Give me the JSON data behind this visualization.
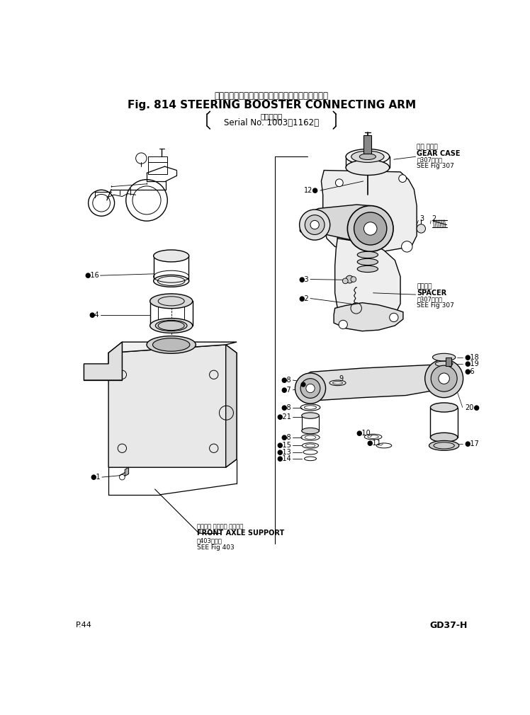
{
  "title_jp": "ステアリング　ブースタ　コネクティング　アーム",
  "title_en": "Fig. 814 STEERING BOOSTER CONNECTING ARM",
  "serial_jp": "（適用号機",
  "serial_en": "Serial No. 1003～1162）",
  "page_left": "P.44",
  "page_right": "GD37-H",
  "background": "#ffffff"
}
